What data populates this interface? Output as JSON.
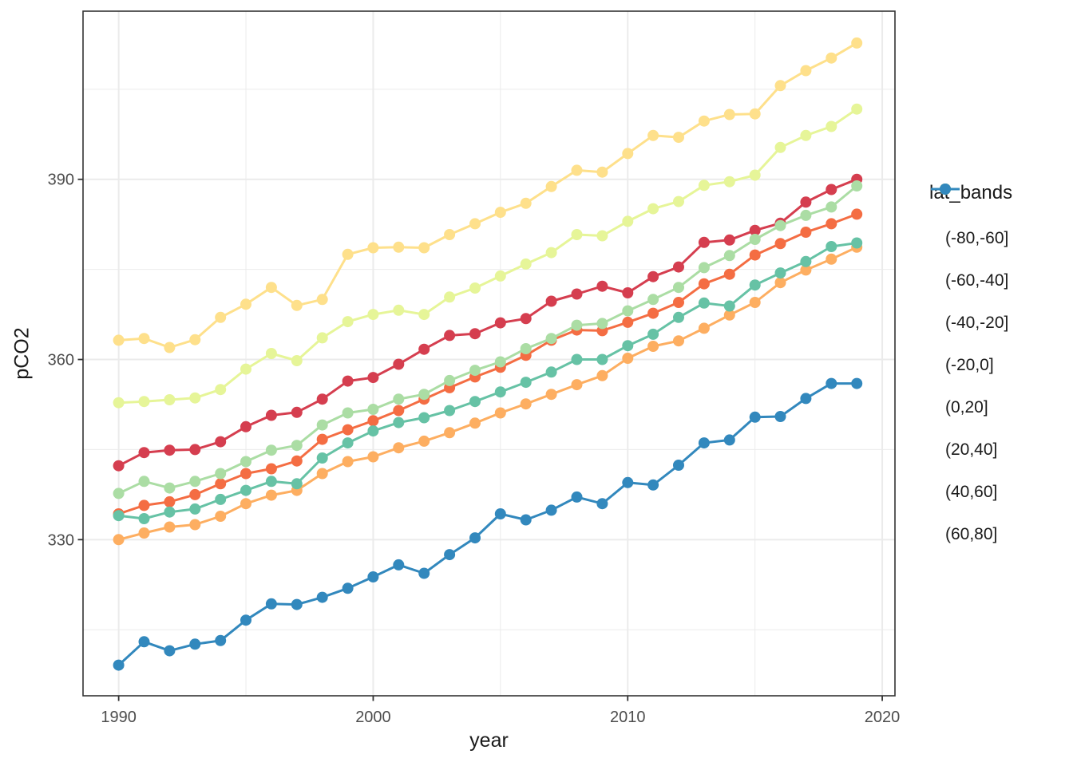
{
  "chart_data": {
    "type": "line",
    "title": "",
    "xlabel": "year",
    "ylabel": "pCO2",
    "legend_title": "lat_bands",
    "legend_position": "right",
    "grid": true,
    "panel_border_color": "#333333",
    "gridline_color": "#ebebeb",
    "tick_label_color": "#4d4d4d",
    "xlim": [
      1988.6,
      2020.5
    ],
    "ylim": [
      304,
      418
    ],
    "x_ticks": [
      1990,
      2000,
      2010,
      2020
    ],
    "x_minor": [
      1995,
      2005,
      2015
    ],
    "y_ticks": [
      330,
      360,
      390
    ],
    "y_minor": [
      315,
      345,
      375,
      405
    ],
    "x": [
      1990,
      1991,
      1992,
      1993,
      1994,
      1995,
      1996,
      1997,
      1998,
      1999,
      2000,
      2001,
      2002,
      2003,
      2004,
      2005,
      2006,
      2007,
      2008,
      2009,
      2010,
      2011,
      2012,
      2013,
      2014,
      2015,
      2016,
      2017,
      2018,
      2019
    ],
    "series": [
      {
        "name": "(-80,-60]",
        "color": "#d53e4f",
        "values": [
          342.3,
          344.5,
          344.9,
          345.0,
          346.3,
          348.8,
          350.7,
          351.2,
          353.4,
          356.4,
          357.0,
          359.2,
          361.7,
          364.0,
          364.3,
          366.1,
          366.8,
          369.7,
          370.9,
          372.2,
          371.1,
          373.8,
          375.4,
          379.5,
          379.9,
          381.5,
          382.7,
          386.2,
          388.3,
          390.0
        ]
      },
      {
        "name": "(-60,-40]",
        "color": "#f46d43",
        "values": [
          334.3,
          335.7,
          336.3,
          337.5,
          339.3,
          341.0,
          341.8,
          343.1,
          346.7,
          348.3,
          349.8,
          351.5,
          353.4,
          355.3,
          357.1,
          358.7,
          360.7,
          363.2,
          364.9,
          364.8,
          366.2,
          367.7,
          369.5,
          372.6,
          374.2,
          377.4,
          379.3,
          381.2,
          382.6,
          384.2
        ]
      },
      {
        "name": "(-40,-20]",
        "color": "#fdae61",
        "values": [
          330.0,
          331.1,
          332.1,
          332.5,
          333.9,
          336.0,
          337.4,
          338.2,
          341.0,
          343.0,
          343.8,
          345.3,
          346.4,
          347.8,
          349.4,
          351.1,
          352.6,
          354.2,
          355.8,
          357.3,
          360.2,
          362.2,
          363.1,
          365.2,
          367.4,
          369.5,
          372.8,
          374.9,
          376.7,
          378.7
        ]
      },
      {
        "name": "(-20,0]",
        "color": "#fee08b",
        "values": [
          363.2,
          363.5,
          362.0,
          363.3,
          367.0,
          369.2,
          372.0,
          369.0,
          370.0,
          377.5,
          378.6,
          378.7,
          378.6,
          380.8,
          382.6,
          384.5,
          386.0,
          388.8,
          391.5,
          391.2,
          394.3,
          397.3,
          397.0,
          399.7,
          400.8,
          400.9,
          405.6,
          408.1,
          410.2,
          412.7
        ]
      },
      {
        "name": "(0,20]",
        "color": "#e6f598",
        "values": [
          352.8,
          353.0,
          353.3,
          353.6,
          355.0,
          358.4,
          361.0,
          359.8,
          363.6,
          366.3,
          367.5,
          368.2,
          367.5,
          370.4,
          371.9,
          373.9,
          375.9,
          377.8,
          380.8,
          380.6,
          383.0,
          385.1,
          386.3,
          389.0,
          389.6,
          390.7,
          395.3,
          397.3,
          398.8,
          401.7
        ]
      },
      {
        "name": "(20,40]",
        "color": "#abdda4",
        "values": [
          337.7,
          339.7,
          338.6,
          339.7,
          341.0,
          343.0,
          344.9,
          345.7,
          349.1,
          351.1,
          351.7,
          353.4,
          354.2,
          356.5,
          358.2,
          359.6,
          361.8,
          363.5,
          365.7,
          366.0,
          368.1,
          370.0,
          372.0,
          375.3,
          377.3,
          380.0,
          382.3,
          384.0,
          385.4,
          388.9
        ]
      },
      {
        "name": "(40,60]",
        "color": "#66c2a5",
        "values": [
          334.0,
          333.5,
          334.6,
          335.1,
          336.7,
          338.2,
          339.7,
          339.3,
          343.6,
          346.1,
          348.1,
          349.5,
          350.3,
          351.5,
          353.0,
          354.6,
          356.2,
          357.9,
          360.0,
          360.0,
          362.3,
          364.2,
          367.0,
          369.4,
          368.9,
          372.4,
          374.4,
          376.3,
          378.8,
          379.4
        ]
      },
      {
        "name": "(60,80]",
        "color": "#3288bd",
        "values": [
          309.1,
          313.0,
          311.5,
          312.6,
          313.2,
          316.6,
          319.3,
          319.2,
          320.4,
          321.9,
          323.8,
          325.8,
          324.4,
          327.5,
          330.3,
          334.3,
          333.3,
          334.9,
          337.1,
          336.0,
          339.5,
          339.1,
          342.4,
          346.1,
          346.6,
          350.4,
          350.5,
          353.5,
          356.0,
          356.0
        ]
      }
    ]
  }
}
